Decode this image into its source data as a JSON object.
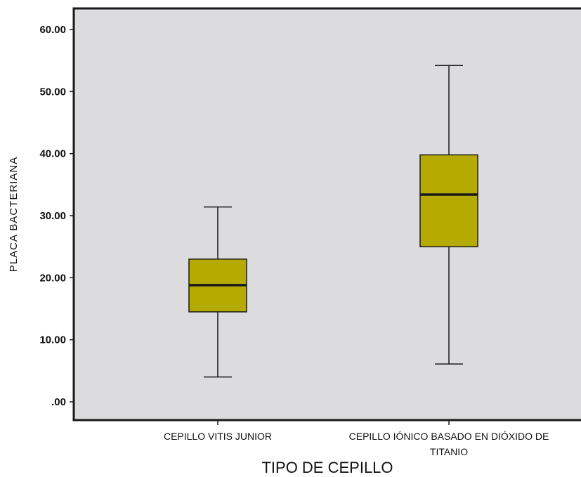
{
  "chart_data": {
    "type": "boxplot",
    "xlabel": "TIPO DE CEPILLO",
    "ylabel": "PLACA  BACTERIANA",
    "ylim": [
      -3.3,
      63.6
    ],
    "yticks": [
      ".00",
      "10.00",
      "20.00",
      "30.00",
      "40.00",
      "50.00",
      "60.00"
    ],
    "ytick_values": [
      0,
      10,
      20,
      30,
      40,
      50,
      60
    ],
    "categories": [
      [
        "CEPILLO VITIS JUNIOR"
      ],
      [
        "CEPILLO IÓNICO BASADO EN DIÓXIDO DE",
        "TITANIO"
      ]
    ],
    "boxes": [
      {
        "min": 4.0,
        "q1": 14.5,
        "median": 18.8,
        "q3": 23.0,
        "max": 31.4
      },
      {
        "min": 6.1,
        "q1": 25.0,
        "median": 33.4,
        "q3": 39.8,
        "max": 54.2
      }
    ],
    "colors": {
      "background": "#dcdcde",
      "box_fill": "#b5aa00",
      "stroke": "#1a1a1a"
    },
    "grid": false,
    "legend": "none"
  }
}
